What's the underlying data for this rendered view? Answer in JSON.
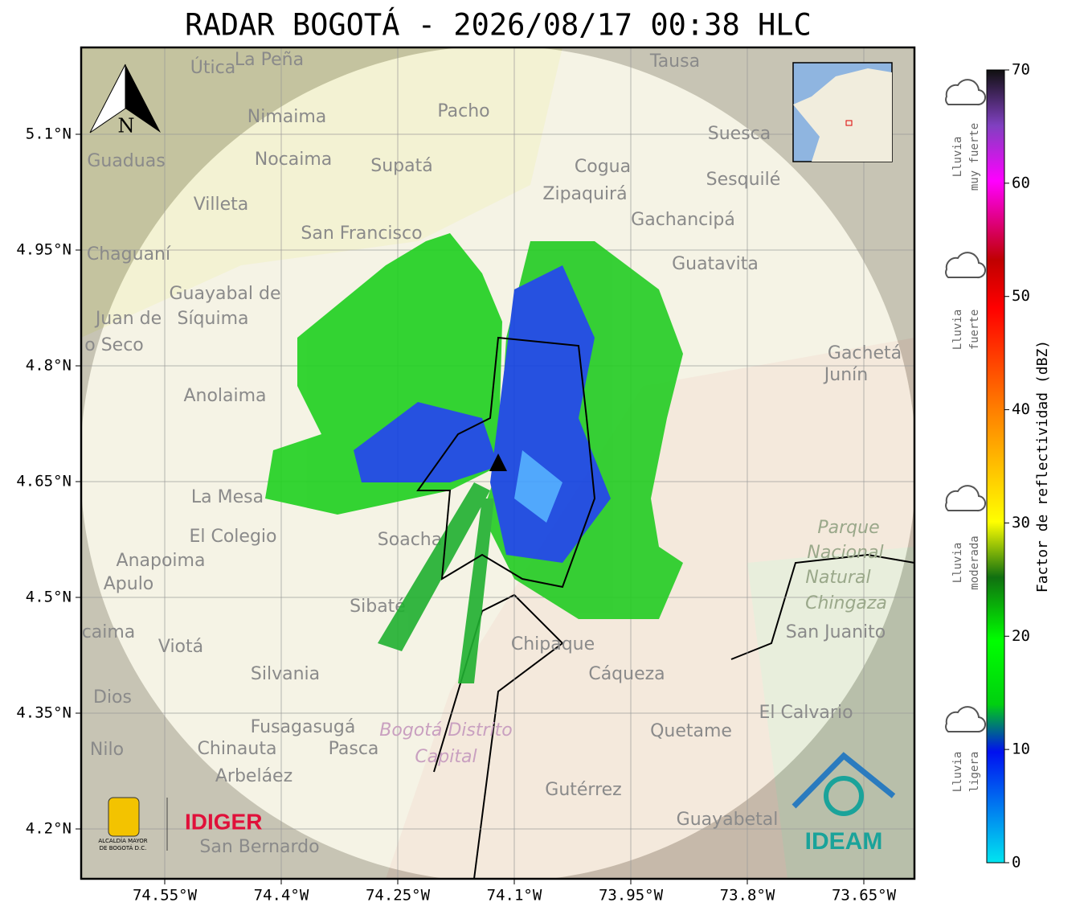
{
  "title": "RADAR BOGOTÁ - 2026/08/17 00:38 HLC",
  "map": {
    "lat_ticks": [
      {
        "value": 5.1,
        "label": "5.1°N"
      },
      {
        "value": 4.95,
        "label": "4.95°N"
      },
      {
        "value": 4.8,
        "label": "4.8°N"
      },
      {
        "value": 4.65,
        "label": "4.65°N"
      },
      {
        "value": 4.5,
        "label": "4.5°N"
      },
      {
        "value": 4.35,
        "label": "4.35°N"
      },
      {
        "value": 4.2,
        "label": "4.2°N"
      }
    ],
    "lon_ticks": [
      {
        "value": -74.55,
        "label": "74.55°W"
      },
      {
        "value": -74.4,
        "label": "74.4°W"
      },
      {
        "value": -74.25,
        "label": "74.25°W"
      },
      {
        "value": -74.1,
        "label": "74.1°W"
      },
      {
        "value": -73.95,
        "label": "73.95°W"
      },
      {
        "value": -73.8,
        "label": "73.8°W"
      },
      {
        "value": -73.65,
        "label": "73.65°W"
      }
    ],
    "north": "N",
    "places": [
      "Útica",
      "La Peña",
      "Tausa",
      "Pacho",
      "Nimaima",
      "Guaduas",
      "Nocaima",
      "Supatá",
      "Cogua",
      "Suesca",
      "Sesquilé",
      "Zipaquirá",
      "Villeta",
      "Gachancipá",
      "San Francisco",
      "Chaguaní",
      "Guatavita",
      "Guayabal de",
      "Síquima",
      "Juan de",
      "o Seco",
      "Gachetá",
      "Junín",
      "Anolaima",
      "La Mesa",
      "El Colegio",
      "Soacha",
      "Anapoima",
      "Apulo",
      "Parque",
      "Nacional",
      "Natural",
      "Chingaza",
      "San Juanito",
      "Chipaque",
      "Viotá",
      "caima",
      "Silvania",
      "Cáqueza",
      "Dios",
      "El Calvario",
      "Fusagasugá",
      "Bogotá Distrito",
      "Capital",
      "Quetame",
      "Nilo",
      "Chinauta",
      "Pasca",
      "Arbeláez",
      "Gutérrez",
      "Guayabetal",
      "San Bernardo",
      "Sibaté"
    ]
  },
  "colorbar": {
    "label": "Factor de reflectividad (dBZ)",
    "range": [
      0,
      70
    ],
    "ticks": [
      0,
      10,
      20,
      30,
      40,
      50,
      60,
      70
    ],
    "levels": [
      [
        "Lluvia",
        "muy fuerte"
      ],
      [
        "Lluvia",
        "fuerte"
      ],
      [
        "Lluvia",
        "moderada"
      ],
      [
        "Lluvia",
        "ligera"
      ]
    ]
  },
  "logos": {
    "alcaldia": [
      "ALCALDÍA MAYOR",
      "DE BOGOTÁ D.C."
    ],
    "idiger": "IDIGER",
    "ideam": "IDEAM"
  }
}
